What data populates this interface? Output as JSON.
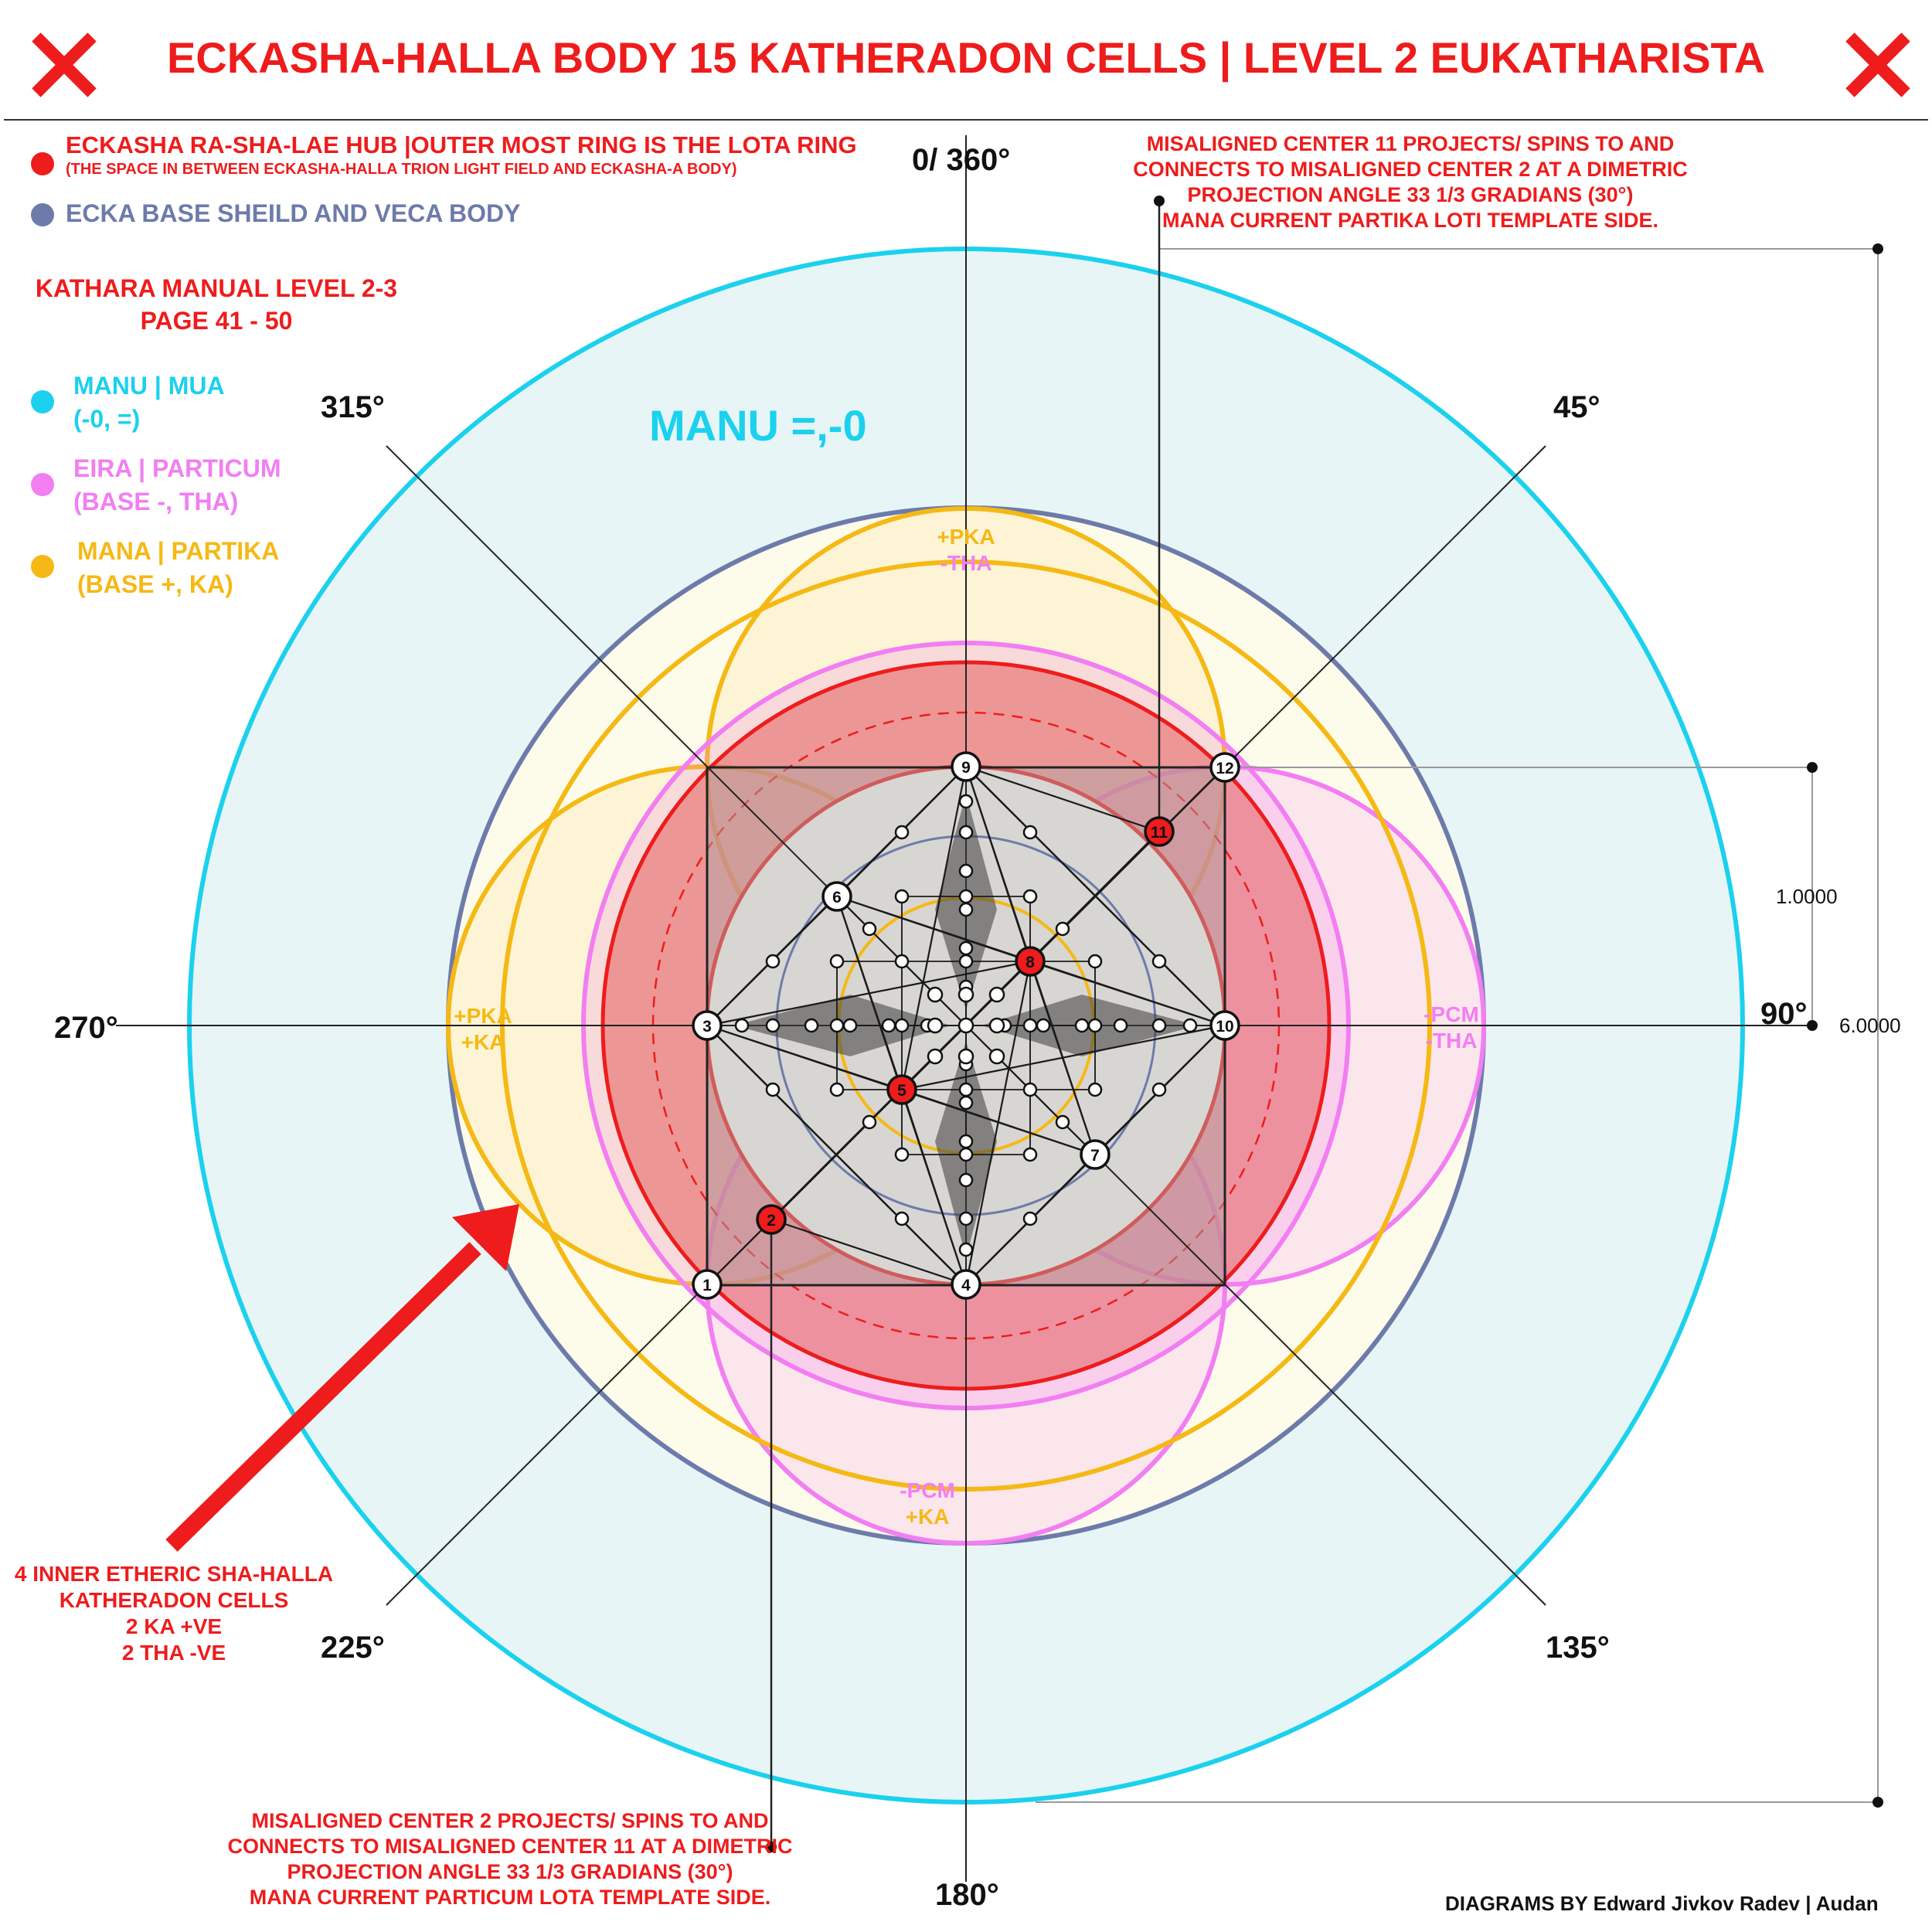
{
  "title": "ECKASHA-HALLA BODY 15 KATHERADON CELLS | LEVEL 2 EUKATHARISTA",
  "legend": {
    "hub_line1": "ECKASHA RA-SHA-LAE HUB |OUTER MOST RING IS THE LOTA RING",
    "hub_line2": "(THE SPACE IN BETWEEN ECKASHA-HALLA TRION LIGHT FIELD AND ECKASHA-A BODY)",
    "base": "ECKA BASE SHEILD AND VECA BODY",
    "manual_line1": "KATHARA MANUAL LEVEL 2-3",
    "manual_line2": "PAGE 41 - 50",
    "manu_line1": "MANU | MUA",
    "manu_line2": "(-0, =)",
    "eira_line1": "EIRA | PARTICUM",
    "eira_line2": "(BASE -, THA)",
    "mana_line1": "MANA | PARTIKA",
    "mana_line2": "(BASE +, KA)"
  },
  "colors": {
    "red": "#ee1c1c",
    "blue": "#6d7bab",
    "cyan": "#1bd1ee",
    "pink": "#f27ef2",
    "gold": "#f5b915"
  },
  "angles": {
    "a0": "0/ 360°",
    "a45": "45°",
    "a90": "90°",
    "a135": "135°",
    "a180": "180°",
    "a225": "225°",
    "a270": "270°",
    "a315": "315°"
  },
  "manu_label": "MANU =,-0",
  "labels": {
    "top_line1": "+PKA",
    "top_line2": "-THA",
    "left_line1": "+PKA",
    "left_line2": "+KA",
    "right_line1": "-PCM",
    "right_line2": "-THA",
    "bottom_line1": "-PCM",
    "bottom_line2": "+KA"
  },
  "measure": {
    "small": "1.0000",
    "large": "6.0000"
  },
  "note_top": {
    "line1": "MISALIGNED CENTER 11 PROJECTS/ SPINS TO AND",
    "line2": "CONNECTS TO MISALIGNED CENTER 2 AT A DIMETRIC",
    "line3": "PROJECTION ANGLE 33 1/3 GRADIANS (30°)",
    "line4": "MANA CURRENT PARTIKA LOTI TEMPLATE SIDE."
  },
  "note_bottom": {
    "line1": "MISALIGNED CENTER 2 PROJECTS/ SPINS TO AND",
    "line2": "CONNECTS TO MISALIGNED CENTER 11 AT A DIMETRIC",
    "line3": "PROJECTION ANGLE 33 1/3 GRADIANS (30°)",
    "line4": "MANA CURRENT PARTICUM LOTA TEMPLATE SIDE."
  },
  "arrow_note": {
    "line1": "4 INNER ETHERIC SHA-HALLA",
    "line2": "KATHERADON CELLS",
    "line3": "2 KA +VE",
    "line4": "2 THA -VE"
  },
  "credit": "DIAGRAMS BY Edward Jivkov Radev | Audan",
  "centers": [
    {
      "n": "1",
      "misaligned": false
    },
    {
      "n": "2",
      "misaligned": true
    },
    {
      "n": "3",
      "misaligned": false
    },
    {
      "n": "4",
      "misaligned": false
    },
    {
      "n": "5",
      "misaligned": true
    },
    {
      "n": "6",
      "misaligned": false
    },
    {
      "n": "7",
      "misaligned": false
    },
    {
      "n": "8",
      "misaligned": true
    },
    {
      "n": "9",
      "misaligned": false
    },
    {
      "n": "10",
      "misaligned": false
    },
    {
      "n": "11",
      "misaligned": true
    },
    {
      "n": "12",
      "misaligned": false
    }
  ]
}
